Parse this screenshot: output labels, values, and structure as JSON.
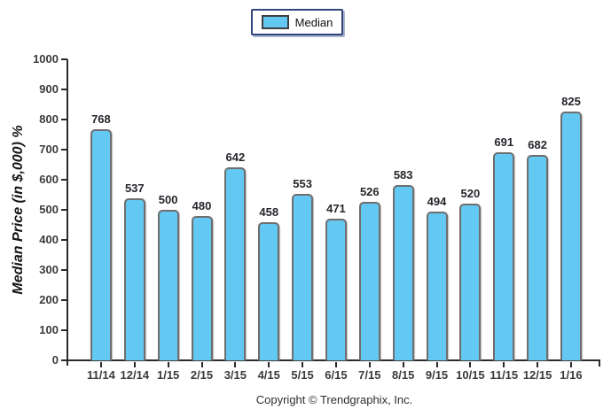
{
  "chart_data": {
    "type": "bar",
    "title": "",
    "series_name": "Median",
    "categories": [
      "11/14",
      "12/14",
      "1/15",
      "2/15",
      "3/15",
      "4/15",
      "5/15",
      "6/15",
      "7/15",
      "8/15",
      "9/15",
      "10/15",
      "11/15",
      "12/15",
      "1/16"
    ],
    "values": [
      768,
      537,
      500,
      480,
      642,
      458,
      553,
      471,
      526,
      583,
      494,
      520,
      691,
      682,
      825
    ],
    "xlabel": "",
    "ylabel": "Median Price (in $,000) %",
    "ylim": [
      0,
      1000
    ],
    "yticks": [
      0,
      100,
      200,
      300,
      400,
      500,
      600,
      700,
      800,
      900,
      1000
    ],
    "grid": false,
    "legend_position": "top-center",
    "bar_color": "#63C9F2",
    "bar_border_color": "#6e6e6e",
    "axis_color": "#2a2a2a"
  },
  "legend": {
    "label": "Median"
  },
  "footer": {
    "copyright": "Copyright © Trendgraphix, Inc."
  }
}
